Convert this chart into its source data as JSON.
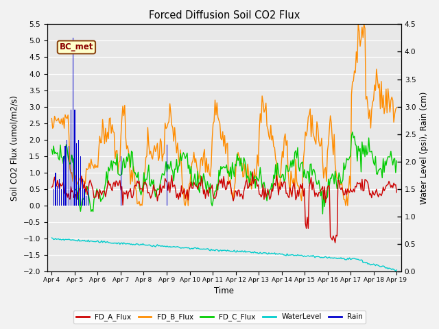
{
  "title": "Forced Diffusion Soil CO2 Flux",
  "xlabel": "Time",
  "ylabel_left": "Soil CO2 Flux (umol/m2/s)",
  "ylabel_right": "Water Level (psi), Rain (cm)",
  "ylim_left": [
    -2.0,
    5.5
  ],
  "ylim_right": [
    0.0,
    4.5
  ],
  "yticks_left": [
    -2.0,
    -1.5,
    -1.0,
    -0.5,
    0.0,
    0.5,
    1.0,
    1.5,
    2.0,
    2.5,
    3.0,
    3.5,
    4.0,
    4.5,
    5.0,
    5.5
  ],
  "yticks_right": [
    0.0,
    0.5,
    1.0,
    1.5,
    2.0,
    2.5,
    3.0,
    3.5,
    4.0,
    4.5
  ],
  "xtick_labels": [
    "Apr 4",
    "Apr 5",
    "Apr 6",
    "Apr 7",
    "Apr 8",
    "Apr 9",
    "Apr 10",
    "Apr 11",
    "Apr 12",
    "Apr 13",
    "Apr 14",
    "Apr 15",
    "Apr 16",
    "Apr 17",
    "Apr 18",
    "Apr 19"
  ],
  "bc_met_label": "BC_met",
  "bc_met_facecolor": "#FFFFCC",
  "bc_met_edgecolor": "#8B4513",
  "colors": {
    "FD_A_Flux": "#CC0000",
    "FD_B_Flux": "#FF8C00",
    "FD_C_Flux": "#00CC00",
    "WaterLevel": "#00CCCC",
    "Rain": "#0000CC"
  },
  "background_color": "#E8E8E8",
  "grid_color": "#FFFFFF",
  "n_points": 360
}
